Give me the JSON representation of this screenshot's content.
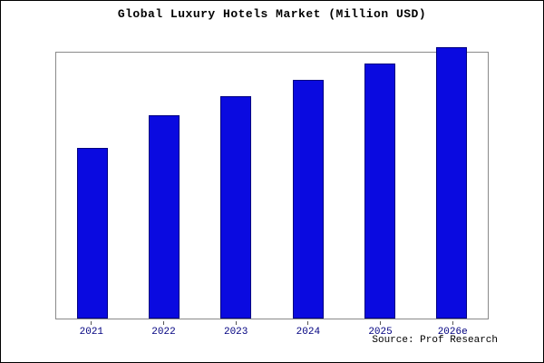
{
  "title": "Global Luxury Hotels Market (Million USD)",
  "source": "Source: Prof Research",
  "chart_data": {
    "type": "bar",
    "title": "Global Luxury Hotels Market (Million USD)",
    "categories": [
      "2021",
      "2022",
      "2023",
      "2024",
      "2025",
      "2026e"
    ],
    "values": [
      63,
      75,
      82,
      88,
      94,
      100
    ],
    "xlabel": "",
    "ylabel": "",
    "ylim": [
      0,
      98
    ],
    "grid": false,
    "legend": false,
    "bar_color": "#0a0ae0",
    "bar_border_color": "#000080",
    "tick_label_color": "#000080",
    "frame_color": "#8a8a8a"
  }
}
